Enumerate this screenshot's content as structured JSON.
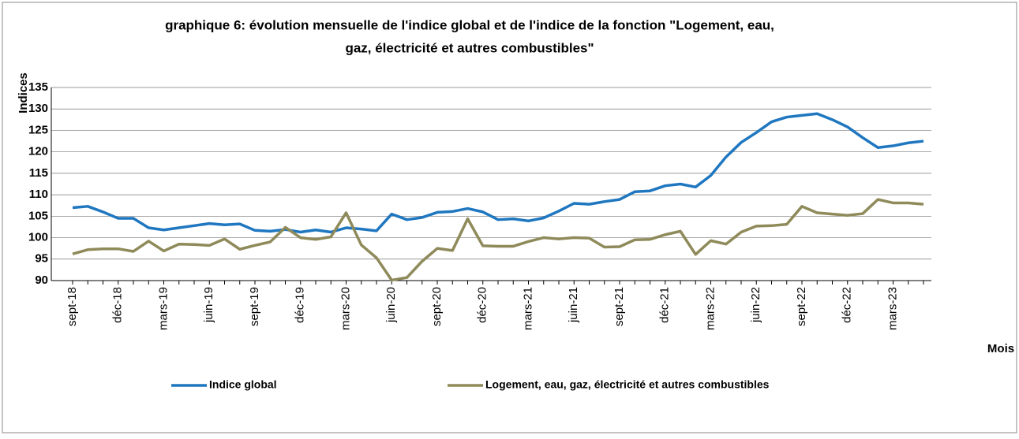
{
  "chart_data": {
    "type": "line",
    "title": [
      "graphique 6: évolution mensuelle de l'indice global et de l'indice de la fonction \"Logement, eau,",
      "gaz, électricité et autres combustibles\""
    ],
    "ylabel": "Indices",
    "xlabel": "Mois",
    "categories": [
      "sept-18",
      null,
      null,
      "déc-18",
      null,
      null,
      "mars-19",
      null,
      null,
      "juin-19",
      null,
      null,
      "sept-19",
      null,
      null,
      "déc-19",
      null,
      null,
      "mars-20",
      null,
      null,
      "juin-20",
      null,
      null,
      "sept-20",
      null,
      null,
      "déc-20",
      null,
      null,
      "mars-21",
      null,
      null,
      "juin-21",
      null,
      null,
      "sept-21",
      null,
      null,
      "déc-21",
      null,
      null,
      "mars-22",
      null,
      null,
      "juin-22",
      null,
      null,
      "sept-22",
      null,
      null,
      "déc-22",
      null,
      null,
      "mars-23",
      null,
      null
    ],
    "series": [
      {
        "name": "Indice global",
        "color": "#1f77c0",
        "values": [
          107,
          107.3,
          106,
          104.5,
          104.5,
          102.3,
          101.8,
          102.3,
          102.8,
          103.3,
          103,
          103.2,
          101.7,
          101.5,
          101.9,
          101.3,
          101.8,
          101.3,
          102.3,
          102,
          101.6,
          105.5,
          104.2,
          104.7,
          105.9,
          106.1,
          106.8,
          106,
          104.2,
          104.4,
          103.9,
          104.6,
          106.2,
          108,
          107.8,
          108.4,
          108.9,
          110.7,
          110.9,
          112.1,
          112.5,
          111.8,
          114.5,
          118.8,
          122.2,
          124.5,
          127,
          128.1,
          128.5,
          128.9,
          127.5,
          125.8,
          123.3,
          121,
          121.4,
          122.1,
          122.5
        ]
      },
      {
        "name": "Logement, eau, gaz, électricité et autres combustibles",
        "color": "#8f8a5a",
        "values": [
          96.2,
          97.2,
          97.4,
          97.4,
          96.8,
          99.2,
          96.9,
          98.5,
          98.4,
          98.2,
          99.7,
          97.3,
          98.2,
          99,
          102.4,
          100,
          99.6,
          100.2,
          105.8,
          98.3,
          95.3,
          90.1,
          90.7,
          94.5,
          97.5,
          97,
          104.4,
          98.1,
          98,
          98,
          99.1,
          100,
          99.7,
          100,
          99.9,
          97.8,
          97.9,
          99.5,
          99.6,
          100.7,
          101.5,
          96.1,
          99.3,
          98.5,
          101.3,
          102.7,
          102.8,
          103.1,
          107.3,
          105.8,
          105.5,
          105.2,
          105.6,
          108.9,
          108.1,
          108.1,
          107.8
        ]
      }
    ],
    "ylim": [
      90,
      135
    ],
    "yticks": [
      90,
      95,
      100,
      105,
      110,
      115,
      120,
      125,
      130,
      135
    ],
    "grid": true,
    "legend": "bottom"
  }
}
